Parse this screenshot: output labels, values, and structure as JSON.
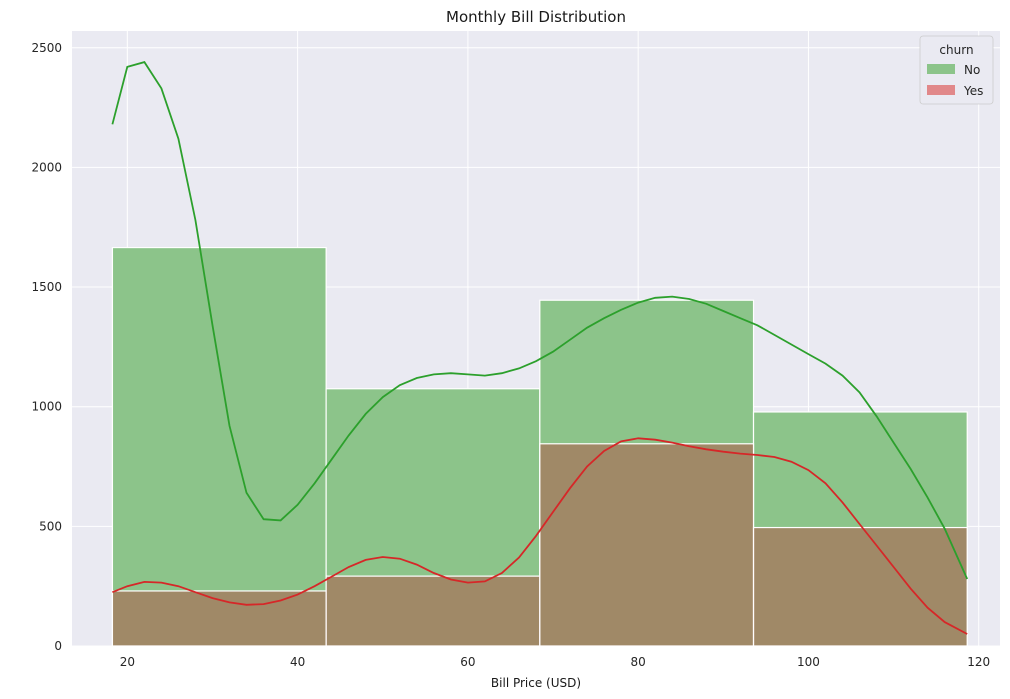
{
  "chart_data": {
    "type": "bar",
    "title": "Monthly Bill Distribution",
    "xlabel": "Bill Price (USD)",
    "ylabel": "",
    "xlim": [
      13.5,
      122.5
    ],
    "ylim": [
      0,
      2570
    ],
    "x_ticks": [
      20,
      40,
      60,
      80,
      100,
      120
    ],
    "y_ticks": [
      0,
      500,
      1000,
      1500,
      2000,
      2500
    ],
    "grid": true,
    "background": "#eaeaf2",
    "legend": {
      "title": "churn",
      "placement": "top-right"
    },
    "bin_edges": [
      18.25,
      43.35,
      68.45,
      93.55,
      118.65
    ],
    "series": [
      {
        "name": "No",
        "values": [
          1665,
          1075,
          1445,
          978
        ],
        "bar_color": "#8cc48a",
        "kde_color": "#2ca02c",
        "kde": [
          [
            18.25,
            2180
          ],
          [
            20,
            2420
          ],
          [
            22,
            2440
          ],
          [
            24,
            2330
          ],
          [
            26,
            2120
          ],
          [
            28,
            1780
          ],
          [
            30,
            1340
          ],
          [
            32,
            920
          ],
          [
            34,
            640
          ],
          [
            36,
            530
          ],
          [
            38,
            525
          ],
          [
            40,
            590
          ],
          [
            42,
            680
          ],
          [
            44,
            780
          ],
          [
            46,
            880
          ],
          [
            48,
            970
          ],
          [
            50,
            1040
          ],
          [
            52,
            1090
          ],
          [
            54,
            1120
          ],
          [
            56,
            1135
          ],
          [
            58,
            1140
          ],
          [
            60,
            1135
          ],
          [
            62,
            1130
          ],
          [
            64,
            1140
          ],
          [
            66,
            1160
          ],
          [
            68,
            1190
          ],
          [
            70,
            1230
          ],
          [
            72,
            1280
          ],
          [
            74,
            1330
          ],
          [
            76,
            1370
          ],
          [
            78,
            1405
          ],
          [
            80,
            1435
          ],
          [
            82,
            1455
          ],
          [
            84,
            1460
          ],
          [
            86,
            1450
          ],
          [
            88,
            1430
          ],
          [
            90,
            1400
          ],
          [
            92,
            1370
          ],
          [
            94,
            1340
          ],
          [
            96,
            1300
          ],
          [
            98,
            1260
          ],
          [
            100,
            1220
          ],
          [
            102,
            1180
          ],
          [
            104,
            1130
          ],
          [
            106,
            1060
          ],
          [
            108,
            960
          ],
          [
            110,
            850
          ],
          [
            112,
            740
          ],
          [
            114,
            620
          ],
          [
            116,
            490
          ],
          [
            118.65,
            280
          ]
        ]
      },
      {
        "name": "Yes",
        "values": [
          230,
          292,
          845,
          495
        ],
        "bar_color": "#e1888a",
        "kde_color": "#d62728",
        "kde": [
          [
            18.25,
            225
          ],
          [
            20,
            250
          ],
          [
            22,
            268
          ],
          [
            24,
            265
          ],
          [
            26,
            250
          ],
          [
            28,
            225
          ],
          [
            30,
            200
          ],
          [
            32,
            182
          ],
          [
            34,
            172
          ],
          [
            36,
            175
          ],
          [
            38,
            190
          ],
          [
            40,
            215
          ],
          [
            42,
            250
          ],
          [
            44,
            290
          ],
          [
            46,
            330
          ],
          [
            48,
            360
          ],
          [
            50,
            372
          ],
          [
            52,
            365
          ],
          [
            54,
            340
          ],
          [
            56,
            305
          ],
          [
            58,
            278
          ],
          [
            60,
            265
          ],
          [
            62,
            270
          ],
          [
            64,
            305
          ],
          [
            66,
            370
          ],
          [
            68,
            460
          ],
          [
            70,
            560
          ],
          [
            72,
            660
          ],
          [
            74,
            750
          ],
          [
            76,
            815
          ],
          [
            78,
            855
          ],
          [
            80,
            868
          ],
          [
            82,
            862
          ],
          [
            84,
            850
          ],
          [
            86,
            835
          ],
          [
            88,
            822
          ],
          [
            90,
            812
          ],
          [
            92,
            804
          ],
          [
            94,
            798
          ],
          [
            96,
            790
          ],
          [
            98,
            770
          ],
          [
            100,
            735
          ],
          [
            102,
            680
          ],
          [
            104,
            600
          ],
          [
            106,
            510
          ],
          [
            108,
            420
          ],
          [
            110,
            330
          ],
          [
            112,
            240
          ],
          [
            114,
            160
          ],
          [
            116,
            100
          ],
          [
            118.65,
            50
          ]
        ]
      }
    ]
  }
}
